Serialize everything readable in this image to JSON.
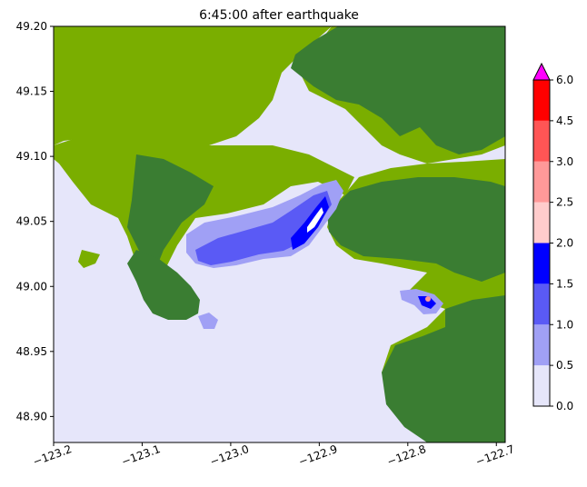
{
  "chart_data": {
    "type": "heatmap",
    "title": "6:45:00 after earthquake",
    "xlabel": "",
    "ylabel": "",
    "xlim": [
      -123.2,
      -122.69
    ],
    "ylim": [
      48.88,
      49.2
    ],
    "x_ticks": [
      -123.2,
      -123.1,
      -123.0,
      -122.9,
      -122.8,
      -122.7
    ],
    "x_tick_labels": [
      "−123.2",
      "−123.1",
      "−123.0",
      "−122.9",
      "−122.8",
      "−122.7"
    ],
    "y_ticks": [
      48.9,
      48.95,
      49.0,
      49.05,
      49.1,
      49.15,
      49.2
    ],
    "y_tick_labels": [
      "48.90",
      "48.95",
      "49.00",
      "49.05",
      "49.10",
      "49.15",
      "49.20"
    ],
    "colorbar": {
      "levels": [
        0.0,
        0.5,
        1.0,
        1.5,
        2.0,
        2.5,
        3.0,
        4.5,
        6.0
      ],
      "tick_labels": [
        "0.0",
        "0.5",
        "1.0",
        "1.5",
        "2.0",
        "2.5",
        "3.0",
        "4.5",
        "6.0"
      ],
      "colors": [
        "#e6e6fa",
        "#a0a0f5",
        "#5a5af5",
        "#0000ff",
        "#ffcccc",
        "#ff9999",
        "#ff5555",
        "#ff0000"
      ],
      "extend_max_color": "#ff00ff",
      "extend": "max"
    },
    "background_colors": {
      "water": "#e6e6fa",
      "lowland": "#7aae00",
      "upland": "#3a7d32"
    }
  }
}
